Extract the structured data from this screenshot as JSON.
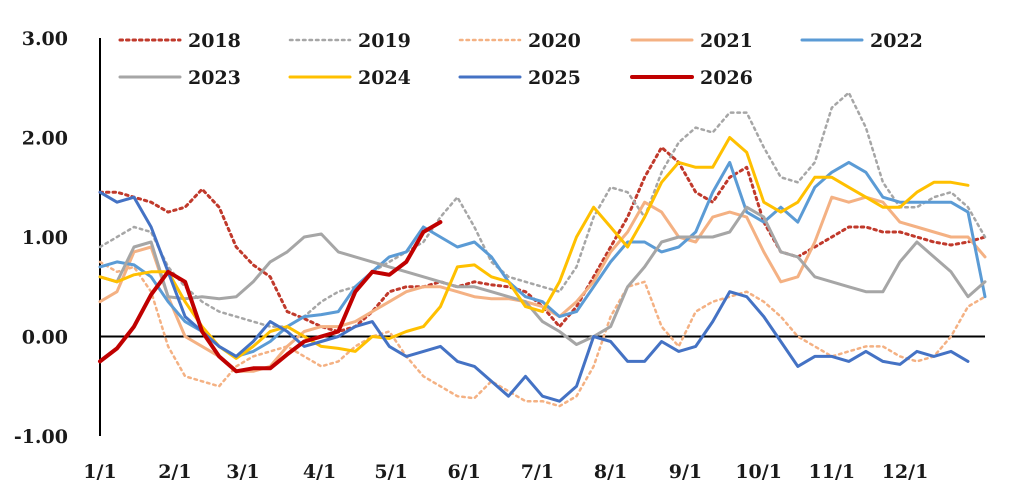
{
  "chart_data": {
    "type": "line",
    "title": "",
    "xlabel": "",
    "ylabel": "",
    "ylim": [
      -1.0,
      3.0
    ],
    "y_ticks": [
      {
        "value": 3.0,
        "label": "3.00"
      },
      {
        "value": 2.0,
        "label": "2.00"
      },
      {
        "value": 1.0,
        "label": "1.00"
      },
      {
        "value": 0.0,
        "label": "0.00"
      },
      {
        "value": -1.0,
        "label": "-1.00"
      }
    ],
    "x_range": [
      1,
      53
    ],
    "x_ticks": [
      {
        "week": 1,
        "label": "1/1"
      },
      {
        "week": 5.4,
        "label": "2/1"
      },
      {
        "week": 9.4,
        "label": "3/1"
      },
      {
        "week": 13.9,
        "label": "4/1"
      },
      {
        "week": 18.1,
        "label": "5/1"
      },
      {
        "week": 22.4,
        "label": "6/1"
      },
      {
        "week": 26.7,
        "label": "7/1"
      },
      {
        "week": 31,
        "label": "8/1"
      },
      {
        "week": 35.4,
        "label": "9/1"
      },
      {
        "week": 39.7,
        "label": "10/1"
      },
      {
        "week": 44,
        "label": "11/1"
      },
      {
        "week": 48.3,
        "label": "12/1"
      }
    ],
    "grid": false,
    "legend_position": "top",
    "series": [
      {
        "name": "2018",
        "color": "#c0392b",
        "style": "dotted",
        "width": 3,
        "values": [
          1.45,
          1.45,
          1.4,
          1.35,
          1.25,
          1.3,
          1.48,
          1.3,
          0.9,
          0.72,
          0.6,
          0.25,
          0.18,
          0.1,
          0.05,
          0.1,
          0.25,
          0.45,
          0.5,
          0.5,
          0.55,
          0.5,
          0.55,
          0.52,
          0.5,
          0.45,
          0.3,
          0.1,
          0.3,
          0.6,
          0.9,
          1.2,
          1.6,
          1.9,
          1.75,
          1.45,
          1.35,
          1.6,
          1.7,
          1.15,
          0.85,
          0.8,
          0.9,
          1.0,
          1.1,
          1.1,
          1.05,
          1.05,
          1.0,
          0.95,
          0.92,
          0.95,
          1.0
        ]
      },
      {
        "name": "2019",
        "color": "#a6a6a6",
        "style": "dotted",
        "width": 2.5,
        "values": [
          0.9,
          1.0,
          1.1,
          1.05,
          0.7,
          0.5,
          0.35,
          0.25,
          0.2,
          0.15,
          0.1,
          0.1,
          0.2,
          0.35,
          0.45,
          0.5,
          0.65,
          0.75,
          0.85,
          0.95,
          1.2,
          1.4,
          1.1,
          0.75,
          0.6,
          0.55,
          0.5,
          0.45,
          0.7,
          1.2,
          1.5,
          1.45,
          1.2,
          1.65,
          1.95,
          2.1,
          2.05,
          2.25,
          2.25,
          1.9,
          1.6,
          1.55,
          1.75,
          2.3,
          2.45,
          2.1,
          1.55,
          1.3,
          1.3,
          1.4,
          1.45,
          1.3,
          1.0
        ]
      },
      {
        "name": "2020",
        "color": "#f4b183",
        "style": "dotted",
        "width": 2.5,
        "values": [
          0.75,
          0.65,
          0.7,
          0.45,
          -0.1,
          -0.4,
          -0.45,
          -0.5,
          -0.3,
          -0.2,
          -0.15,
          -0.1,
          -0.2,
          -0.3,
          -0.25,
          -0.1,
          0.0,
          0.05,
          -0.2,
          -0.4,
          -0.5,
          -0.6,
          -0.62,
          -0.45,
          -0.55,
          -0.65,
          -0.65,
          -0.7,
          -0.6,
          -0.3,
          0.2,
          0.5,
          0.55,
          0.1,
          -0.1,
          0.25,
          0.35,
          0.4,
          0.45,
          0.35,
          0.2,
          0.0,
          -0.1,
          -0.2,
          -0.15,
          -0.1,
          -0.1,
          -0.2,
          -0.25,
          -0.2,
          0.0,
          0.3,
          0.4
        ]
      },
      {
        "name": "2021",
        "color": "#f4b183",
        "style": "solid",
        "width": 3,
        "values": [
          0.35,
          0.45,
          0.85,
          0.9,
          0.4,
          0.0,
          -0.1,
          -0.2,
          -0.35,
          -0.35,
          -0.3,
          -0.1,
          0.05,
          0.1,
          0.1,
          0.15,
          0.25,
          0.35,
          0.45,
          0.5,
          0.5,
          0.45,
          0.4,
          0.38,
          0.38,
          0.35,
          0.3,
          0.2,
          0.35,
          0.55,
          0.85,
          1.05,
          1.35,
          1.25,
          1.0,
          0.95,
          1.2,
          1.25,
          1.2,
          0.85,
          0.55,
          0.6,
          0.95,
          1.4,
          1.35,
          1.4,
          1.35,
          1.15,
          1.1,
          1.05,
          1.0,
          1.0,
          0.8
        ]
      },
      {
        "name": "2022",
        "color": "#5b9bd5",
        "style": "solid",
        "width": 3,
        "values": [
          0.7,
          0.75,
          0.72,
          0.6,
          0.35,
          0.15,
          0.05,
          -0.1,
          -0.2,
          -0.15,
          -0.05,
          0.1,
          0.2,
          0.22,
          0.25,
          0.5,
          0.65,
          0.8,
          0.85,
          1.1,
          1.0,
          0.9,
          0.95,
          0.8,
          0.55,
          0.4,
          0.35,
          0.2,
          0.25,
          0.5,
          0.75,
          0.95,
          0.95,
          0.85,
          0.9,
          1.05,
          1.45,
          1.75,
          1.25,
          1.15,
          1.3,
          1.15,
          1.5,
          1.65,
          1.75,
          1.65,
          1.4,
          1.35,
          1.35,
          1.35,
          1.35,
          1.25,
          0.4
        ]
      },
      {
        "name": "2023",
        "color": "#a6a6a6",
        "style": "solid",
        "width": 3,
        "values": [
          0.6,
          0.55,
          0.9,
          0.95,
          0.4,
          0.38,
          0.4,
          0.38,
          0.4,
          0.55,
          0.75,
          0.85,
          1.0,
          1.03,
          0.85,
          0.8,
          0.75,
          0.7,
          0.65,
          0.6,
          0.55,
          0.5,
          0.5,
          0.45,
          0.4,
          0.35,
          0.15,
          0.05,
          -0.08,
          0.0,
          0.1,
          0.5,
          0.7,
          0.95,
          1.0,
          1.0,
          1.0,
          1.05,
          1.3,
          1.2,
          0.85,
          0.8,
          0.6,
          0.55,
          0.5,
          0.45,
          0.45,
          0.75,
          0.95,
          0.8,
          0.65,
          0.4,
          0.55
        ]
      },
      {
        "name": "2024",
        "color": "#ffc000",
        "style": "solid",
        "width": 3,
        "values": [
          0.6,
          0.55,
          0.62,
          0.65,
          0.65,
          0.35,
          0.1,
          -0.1,
          -0.22,
          -0.1,
          0.05,
          0.1,
          0.0,
          -0.1,
          -0.12,
          -0.15,
          0.0,
          -0.02,
          0.05,
          0.1,
          0.3,
          0.7,
          0.72,
          0.6,
          0.55,
          0.3,
          0.25,
          0.55,
          1.0,
          1.3,
          1.1,
          0.9,
          1.2,
          1.55,
          1.75,
          1.7,
          1.7,
          2.0,
          1.85,
          1.35,
          1.25,
          1.35,
          1.6,
          1.6,
          1.5,
          1.4,
          1.3,
          1.3,
          1.45,
          1.55,
          1.55,
          1.52
        ]
      },
      {
        "name": "2025",
        "color": "#4472c4",
        "style": "solid",
        "width": 3,
        "values": [
          1.45,
          1.35,
          1.4,
          1.1,
          0.65,
          0.2,
          0.05,
          -0.1,
          -0.2,
          -0.05,
          0.15,
          0.05,
          -0.1,
          -0.05,
          0.0,
          0.1,
          0.15,
          -0.1,
          -0.2,
          -0.15,
          -0.1,
          -0.25,
          -0.3,
          -0.45,
          -0.6,
          -0.4,
          -0.6,
          -0.65,
          -0.5,
          0.0,
          -0.05,
          -0.25,
          -0.25,
          -0.05,
          -0.15,
          -0.1,
          0.15,
          0.45,
          0.4,
          0.2,
          -0.05,
          -0.3,
          -0.2,
          -0.2,
          -0.25,
          -0.15,
          -0.25,
          -0.28,
          -0.15,
          -0.2,
          -0.15,
          -0.25
        ]
      },
      {
        "name": "2026",
        "color": "#c00000",
        "style": "solid",
        "width": 4,
        "values": [
          -0.25,
          -0.12,
          0.1,
          0.42,
          0.65,
          0.55,
          0.05,
          -0.2,
          -0.35,
          -0.32,
          -0.32,
          -0.18,
          -0.05,
          0.0,
          0.05,
          0.45,
          0.65,
          0.62,
          0.75,
          1.05,
          1.15
        ]
      }
    ]
  }
}
